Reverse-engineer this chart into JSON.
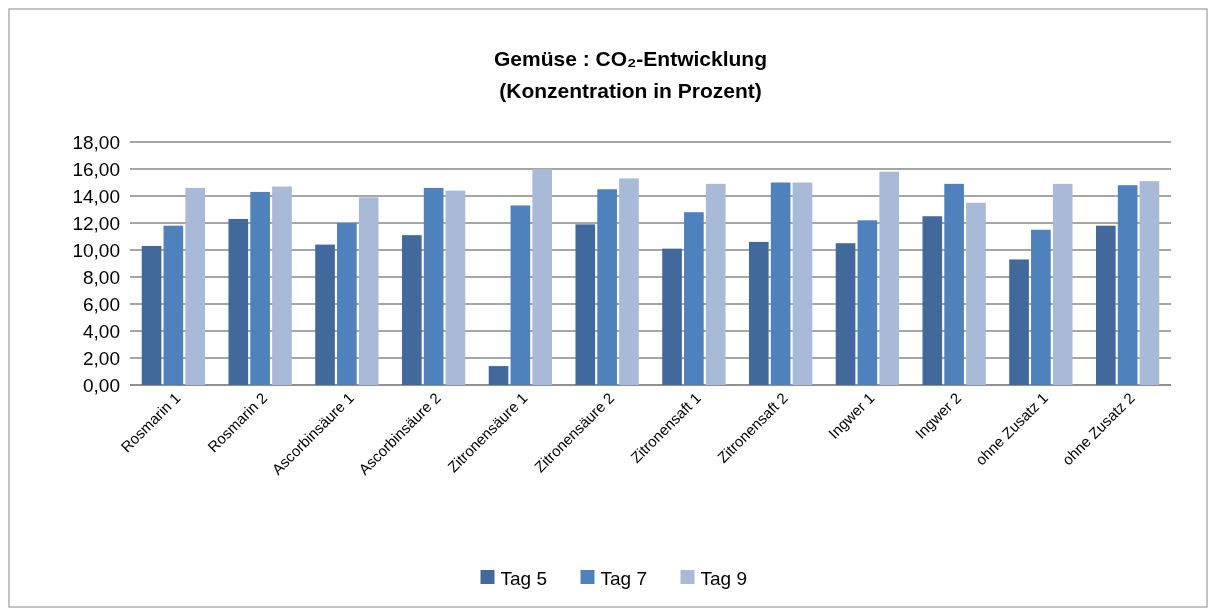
{
  "chart_data": {
    "type": "bar",
    "title": "Gemüse : CO₂-Entwicklung\n(Konzentration in Prozent)",
    "categories": [
      "Rosmarin 1",
      "Rosmarin 2",
      "Ascorbinsäure 1",
      "Ascorbinsäure 2",
      "Zitronensäure 1",
      "Zitronensäure 2",
      "Zitronensaft 1",
      "Zitronensaft 2",
      "Ingwer 1",
      "Ingwer 2",
      "ohne Zusatz 1",
      "ohne Zusatz 2"
    ],
    "series": [
      {
        "name": "Tag 5",
        "color": "#41699c",
        "values": [
          10.3,
          12.3,
          10.4,
          11.1,
          1.4,
          11.9,
          10.1,
          10.6,
          10.5,
          12.5,
          9.3,
          11.8
        ]
      },
      {
        "name": "Tag 7",
        "color": "#4f81bd",
        "values": [
          11.8,
          14.3,
          12.0,
          14.6,
          13.3,
          14.5,
          12.8,
          15.0,
          12.2,
          14.9,
          11.5,
          14.8
        ]
      },
      {
        "name": "Tag 9",
        "color": "#a9b9d8",
        "values": [
          14.6,
          14.7,
          13.9,
          14.4,
          16.0,
          15.3,
          14.9,
          15.0,
          15.8,
          13.5,
          14.9,
          15.1
        ]
      }
    ],
    "ylim": [
      0,
      18
    ],
    "yticks": [
      {
        "value": 0,
        "label": "0,00"
      },
      {
        "value": 2,
        "label": "2,00"
      },
      {
        "value": 4,
        "label": "4,00"
      },
      {
        "value": 6,
        "label": "6,00"
      },
      {
        "value": 8,
        "label": "8,00"
      },
      {
        "value": 10,
        "label": "10,00"
      },
      {
        "value": 12,
        "label": "12,00"
      },
      {
        "value": 14,
        "label": "14,00"
      },
      {
        "value": 16,
        "label": "16,00"
      },
      {
        "value": 18,
        "label": "18,00"
      }
    ],
    "grid": "y",
    "legend": "bottom"
  }
}
